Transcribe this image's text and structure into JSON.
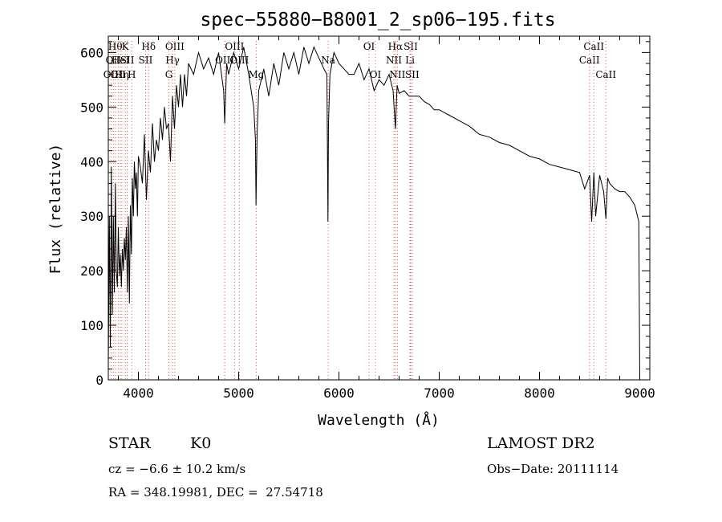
{
  "chart_data": {
    "type": "line",
    "title": "spec−55880−B8001_2_sp06−195.fits",
    "xlabel": "Wavelength (Å)",
    "ylabel": "Flux (relative)",
    "xlim": [
      3700,
      9100
    ],
    "ylim": [
      0,
      630
    ],
    "xticks": [
      {
        "value": 4000,
        "label": "4000"
      },
      {
        "value": 5000,
        "label": "5000"
      },
      {
        "value": 6000,
        "label": "6000"
      },
      {
        "value": 7000,
        "label": "7000"
      },
      {
        "value": 8000,
        "label": "8000"
      },
      {
        "value": 9000,
        "label": "9000"
      }
    ],
    "yticks": [
      {
        "value": 0,
        "label": "0"
      },
      {
        "value": 100,
        "label": "100"
      },
      {
        "value": 200,
        "label": "200"
      },
      {
        "value": 300,
        "label": "300"
      },
      {
        "value": 400,
        "label": "400"
      },
      {
        "value": 500,
        "label": "500"
      },
      {
        "value": 600,
        "label": "600"
      }
    ],
    "grid": false,
    "series": [
      {
        "color": "#000000",
        "x": [
          3700,
          3710,
          3720,
          3730,
          3740,
          3750,
          3760,
          3770,
          3780,
          3790,
          3800,
          3810,
          3820,
          3830,
          3840,
          3850,
          3860,
          3870,
          3880,
          3890,
          3900,
          3910,
          3920,
          3930,
          3940,
          3950,
          3960,
          3970,
          3980,
          3990,
          4000,
          4020,
          4040,
          4060,
          4080,
          4100,
          4120,
          4140,
          4160,
          4180,
          4200,
          4220,
          4240,
          4260,
          4280,
          4300,
          4320,
          4340,
          4360,
          4380,
          4400,
          4420,
          4440,
          4460,
          4480,
          4500,
          4550,
          4600,
          4650,
          4700,
          4750,
          4800,
          4850,
          4861,
          4880,
          4900,
          4950,
          5000,
          5050,
          5100,
          5150,
          5167,
          5173,
          5184,
          5200,
          5250,
          5300,
          5350,
          5400,
          5450,
          5500,
          5550,
          5600,
          5650,
          5700,
          5750,
          5800,
          5850,
          5880,
          5890,
          5896,
          5910,
          5950,
          6000,
          6050,
          6100,
          6150,
          6200,
          6250,
          6300,
          6350,
          6400,
          6450,
          6500,
          6540,
          6563,
          6580,
          6600,
          6650,
          6700,
          6750,
          6800,
          6850,
          6900,
          6950,
          7000,
          7100,
          7200,
          7300,
          7400,
          7500,
          7600,
          7700,
          7800,
          7900,
          8000,
          8100,
          8200,
          8300,
          8400,
          8450,
          8500,
          8520,
          8542,
          8560,
          8600,
          8640,
          8662,
          8680,
          8700,
          8750,
          8800,
          8850,
          8900,
          8950,
          8990,
          9000
        ],
        "y": [
          30,
          300,
          60,
          390,
          120,
          300,
          160,
          360,
          200,
          170,
          280,
          190,
          230,
          170,
          240,
          200,
          260,
          220,
          280,
          160,
          300,
          140,
          320,
          230,
          370,
          300,
          400,
          350,
          380,
          300,
          410,
          390,
          360,
          450,
          330,
          420,
          380,
          470,
          400,
          440,
          420,
          480,
          440,
          500,
          460,
          470,
          400,
          520,
          460,
          540,
          500,
          560,
          500,
          560,
          520,
          580,
          560,
          600,
          570,
          590,
          560,
          600,
          530,
          470,
          580,
          560,
          600,
          570,
          610,
          560,
          500,
          440,
          320,
          450,
          530,
          570,
          520,
          580,
          540,
          600,
          570,
          600,
          560,
          610,
          580,
          610,
          590,
          570,
          560,
          290,
          470,
          560,
          600,
          580,
          570,
          560,
          560,
          580,
          550,
          570,
          530,
          550,
          540,
          560,
          530,
          460,
          540,
          525,
          530,
          520,
          520,
          520,
          510,
          505,
          495,
          495,
          485,
          475,
          465,
          450,
          445,
          435,
          430,
          420,
          410,
          405,
          395,
          390,
          385,
          380,
          350,
          375,
          290,
          380,
          300,
          375,
          345,
          295,
          370,
          360,
          350,
          345,
          345,
          335,
          320,
          290,
          0
        ]
      }
    ],
    "line_markers": [
      {
        "x": 3727,
        "label": "OII",
        "row": 3
      },
      {
        "x": 3750,
        "label": "OII",
        "row": 2
      },
      {
        "x": 3770,
        "label": "Hθ",
        "row": 1
      },
      {
        "x": 3798,
        "label": "OII",
        "row": 3
      },
      {
        "x": 3820,
        "label": "HeI",
        "row": 2
      },
      {
        "x": 3835,
        "label": "Hη",
        "row": 3
      },
      {
        "x": 3869,
        "label": "K",
        "row": 1
      },
      {
        "x": 3889,
        "label": "SII",
        "row": 2
      },
      {
        "x": 3934,
        "label": "H",
        "row": 3
      },
      {
        "x": 4072,
        "label": "SII",
        "row": 2
      },
      {
        "x": 4102,
        "label": "Hδ",
        "row": 1
      },
      {
        "x": 4304,
        "label": "G",
        "row": 3
      },
      {
        "x": 4341,
        "label": "Hγ",
        "row": 2
      },
      {
        "x": 4363,
        "label": "OIII",
        "row": 1
      },
      {
        "x": 4861,
        "label": "OIII",
        "row": 2
      },
      {
        "x": 4959,
        "label": "OIII",
        "row": 1
      },
      {
        "x": 5007,
        "label": "OIII",
        "row": 2
      },
      {
        "x": 5175,
        "label": "Mg",
        "row": 3
      },
      {
        "x": 5893,
        "label": "Na",
        "row": 2
      },
      {
        "x": 6300,
        "label": "OI",
        "row": 1
      },
      {
        "x": 6364,
        "label": "OI",
        "row": 3
      },
      {
        "x": 6548,
        "label": "NII",
        "row": 2
      },
      {
        "x": 6563,
        "label": "Hα",
        "row": 1
      },
      {
        "x": 6583,
        "label": "NII",
        "row": 3
      },
      {
        "x": 6708,
        "label": "Li",
        "row": 2
      },
      {
        "x": 6716,
        "label": "SII",
        "row": 1
      },
      {
        "x": 6731,
        "label": "SII",
        "row": 3
      },
      {
        "x": 8498,
        "label": "CaII",
        "row": 2
      },
      {
        "x": 8542,
        "label": "CaII",
        "row": 1
      },
      {
        "x": 8662,
        "label": "CaII",
        "row": 3
      }
    ],
    "marker_color": "#d9534f"
  },
  "info": {
    "object_class": "STAR",
    "subclass": "K0",
    "survey": "LAMOST DR2",
    "velocity": "cz = −6.6 ± 10.2 km/s",
    "obs_date": "Obs−Date: 20111114",
    "coordinates": "RA = 348.19981, DEC =  27.54718"
  }
}
